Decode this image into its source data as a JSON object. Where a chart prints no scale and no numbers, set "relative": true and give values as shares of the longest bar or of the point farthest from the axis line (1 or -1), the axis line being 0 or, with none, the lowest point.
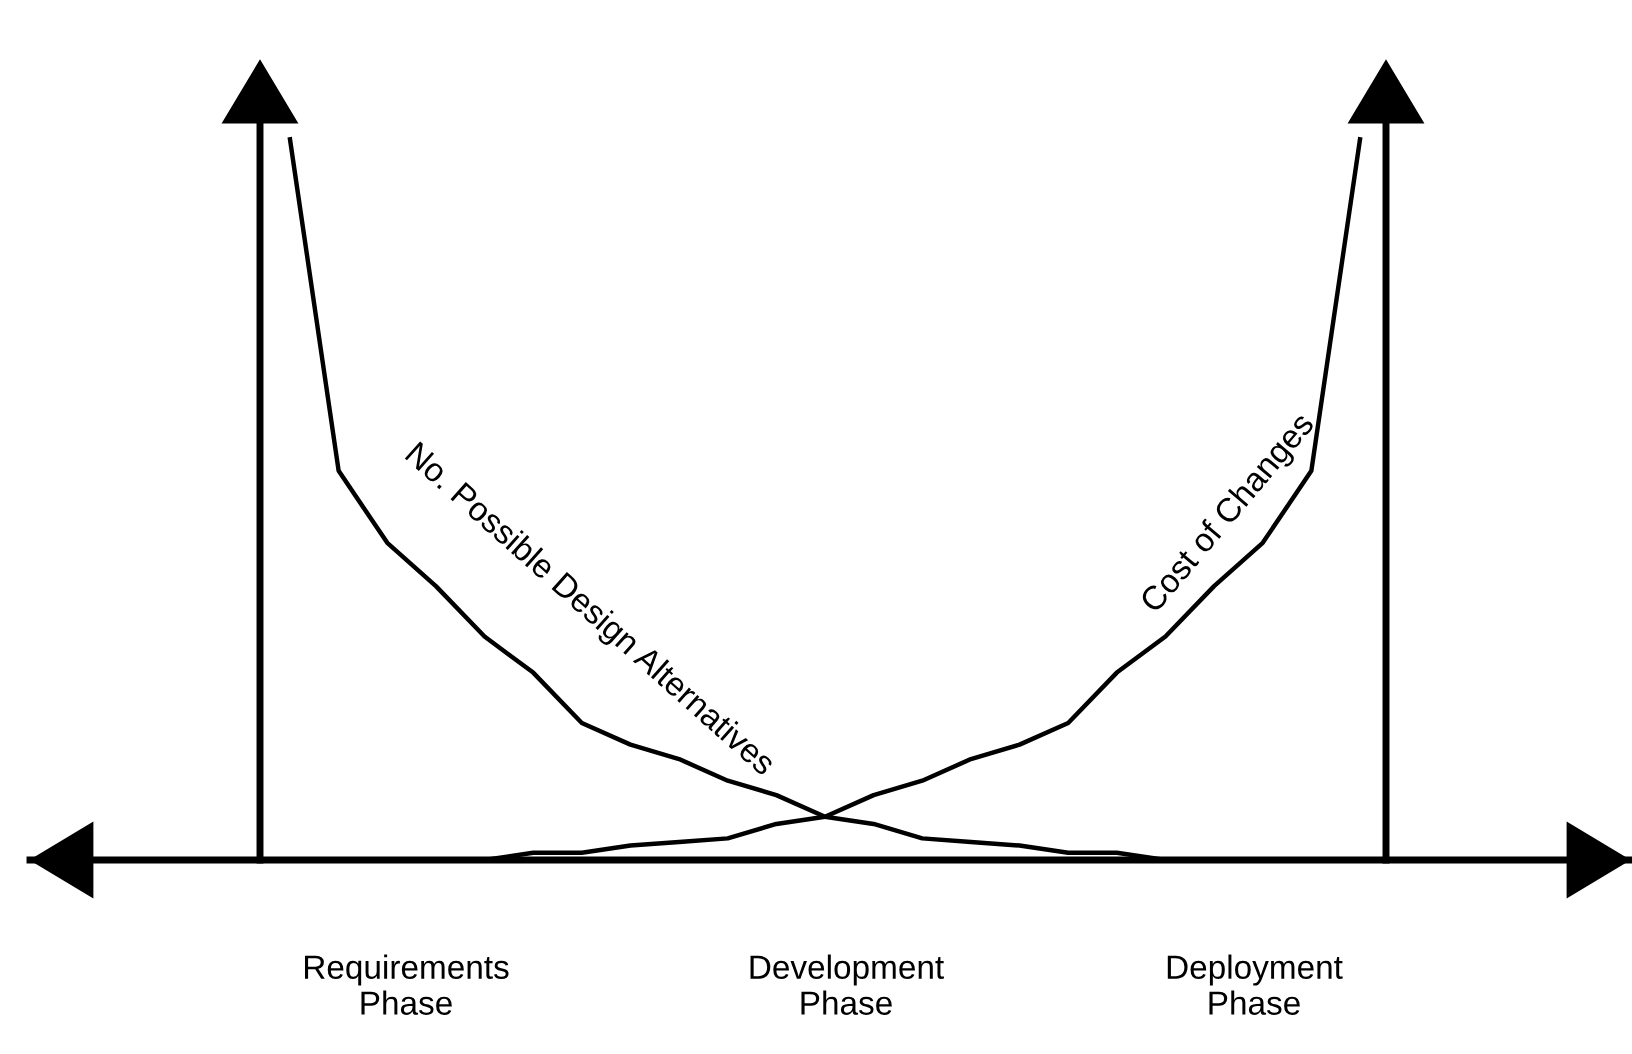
{
  "chart_data": {
    "type": "line",
    "relative": true,
    "categories": [
      null,
      null,
      null,
      null,
      null,
      null,
      null,
      null,
      null,
      null,
      null,
      null,
      null,
      null,
      null,
      null,
      null,
      null,
      null,
      null,
      null,
      null,
      null
    ],
    "series": [
      {
        "name": "No. Possible Design Alternatives",
        "color": "#000000",
        "values": [
          1.0,
          0.54,
          0.44,
          0.38,
          0.31,
          0.26,
          0.19,
          0.16,
          0.14,
          0.11,
          0.09,
          0.06,
          0.05,
          0.03,
          0.025,
          0.02,
          0.01,
          0.01,
          0,
          0,
          0,
          0,
          null
        ]
      },
      {
        "name": "Cost of Changes",
        "color": "#000000",
        "values": [
          null,
          0,
          0,
          0,
          0,
          0.01,
          0.01,
          0.02,
          0.025,
          0.03,
          0.05,
          0.06,
          0.09,
          0.11,
          0.14,
          0.16,
          0.19,
          0.26,
          0.31,
          0.38,
          0.44,
          0.54,
          1.0
        ]
      }
    ],
    "annotations": [
      "Requirements\nPhase",
      "Development\nPhase",
      "Deployment\nPhase"
    ],
    "grid": false,
    "legend": false,
    "marker": "none",
    "line_style": "solid"
  }
}
